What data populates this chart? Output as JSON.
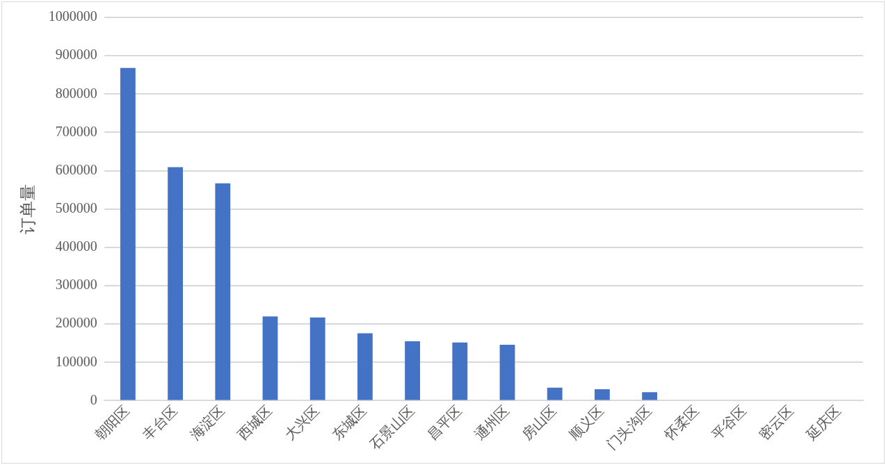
{
  "chart_data": {
    "type": "bar",
    "ylabel": "订单量",
    "categories": [
      "朝阳区",
      "丰台区",
      "海淀区",
      "西城区",
      "大兴区",
      "东城区",
      "石景山区",
      "昌平区",
      "通州区",
      "房山区",
      "顺义区",
      "门头沟区",
      "怀柔区",
      "平谷区",
      "密云区",
      "延庆区"
    ],
    "values": [
      868000,
      609000,
      567000,
      220000,
      217000,
      176000,
      155000,
      152000,
      146000,
      34000,
      30000,
      22000,
      0,
      0,
      0,
      0
    ],
    "color": "#4472c4",
    "ylim": [
      0,
      1000000
    ],
    "yticks": [
      0,
      100000,
      200000,
      300000,
      400000,
      500000,
      600000,
      700000,
      800000,
      900000,
      1000000
    ],
    "grid": "y"
  }
}
